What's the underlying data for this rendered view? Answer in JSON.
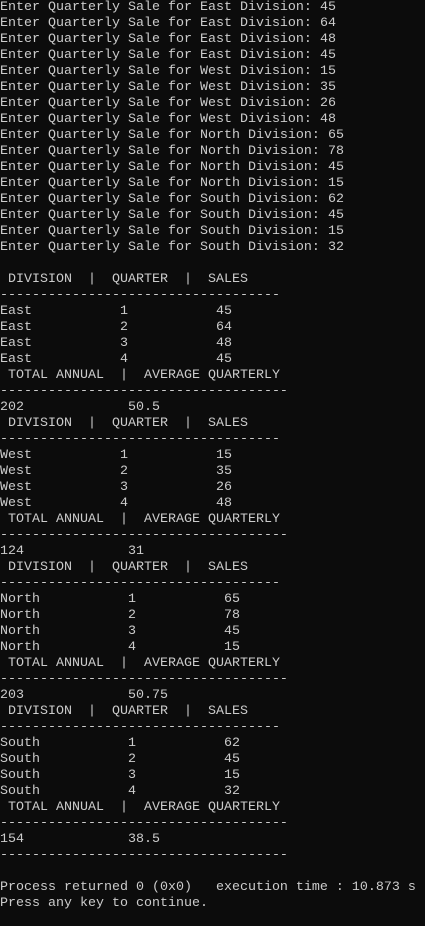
{
  "input_prompts": [
    {
      "text": "Enter Quarterly Sale for East Division:",
      "value": 45
    },
    {
      "text": "Enter Quarterly Sale for East Division:",
      "value": 64
    },
    {
      "text": "Enter Quarterly Sale for East Division:",
      "value": 48
    },
    {
      "text": "Enter Quarterly Sale for East Division:",
      "value": 45
    },
    {
      "text": "Enter Quarterly Sale for West Division:",
      "value": 15
    },
    {
      "text": "Enter Quarterly Sale for West Division:",
      "value": 35
    },
    {
      "text": "Enter Quarterly Sale for West Division:",
      "value": 26
    },
    {
      "text": "Enter Quarterly Sale for West Division:",
      "value": 48
    },
    {
      "text": "Enter Quarterly Sale for North Division:",
      "value": 65
    },
    {
      "text": "Enter Quarterly Sale for North Division:",
      "value": 78
    },
    {
      "text": "Enter Quarterly Sale for North Division:",
      "value": 45
    },
    {
      "text": "Enter Quarterly Sale for North Division:",
      "value": 15
    },
    {
      "text": "Enter Quarterly Sale for South Division:",
      "value": 62
    },
    {
      "text": "Enter Quarterly Sale for South Division:",
      "value": 45
    },
    {
      "text": "Enter Quarterly Sale for South Division:",
      "value": 15
    },
    {
      "text": "Enter Quarterly Sale for South Division:",
      "value": 32
    }
  ],
  "table_header": " DIVISION  |  QUARTER  |  SALES",
  "header_rule": "-----------------------------------",
  "summary_header": " TOTAL ANNUAL  |  AVERAGE QUARTERLY",
  "summary_rule": "------------------------------------",
  "reports": [
    {
      "rows": [
        {
          "division": "East",
          "quarter": 1,
          "sales": 45
        },
        {
          "division": "East",
          "quarter": 2,
          "sales": 64
        },
        {
          "division": "East",
          "quarter": 3,
          "sales": 48
        },
        {
          "division": "East",
          "quarter": 4,
          "sales": 45
        }
      ],
      "total": 202,
      "average": 50.5
    },
    {
      "rows": [
        {
          "division": "West",
          "quarter": 1,
          "sales": 15
        },
        {
          "division": "West",
          "quarter": 2,
          "sales": 35
        },
        {
          "division": "West",
          "quarter": 3,
          "sales": 26
        },
        {
          "division": "West",
          "quarter": 4,
          "sales": 48
        }
      ],
      "total": 124,
      "average": 31
    },
    {
      "rows": [
        {
          "division": "North",
          "quarter": 1,
          "sales": 65
        },
        {
          "division": "North",
          "quarter": 2,
          "sales": 78
        },
        {
          "division": "North",
          "quarter": 3,
          "sales": 45
        },
        {
          "division": "North",
          "quarter": 4,
          "sales": 15
        }
      ],
      "total": 203,
      "average": 50.75
    },
    {
      "rows": [
        {
          "division": "South",
          "quarter": 1,
          "sales": 62
        },
        {
          "division": "South",
          "quarter": 2,
          "sales": 45
        },
        {
          "division": "South",
          "quarter": 3,
          "sales": 15
        },
        {
          "division": "South",
          "quarter": 4,
          "sales": 32
        }
      ],
      "total": 154,
      "average": 38.5
    }
  ],
  "footer": {
    "status": "Process returned 0 (0x0)   execution time : 10.873 s",
    "prompt": "Press any key to continue."
  }
}
